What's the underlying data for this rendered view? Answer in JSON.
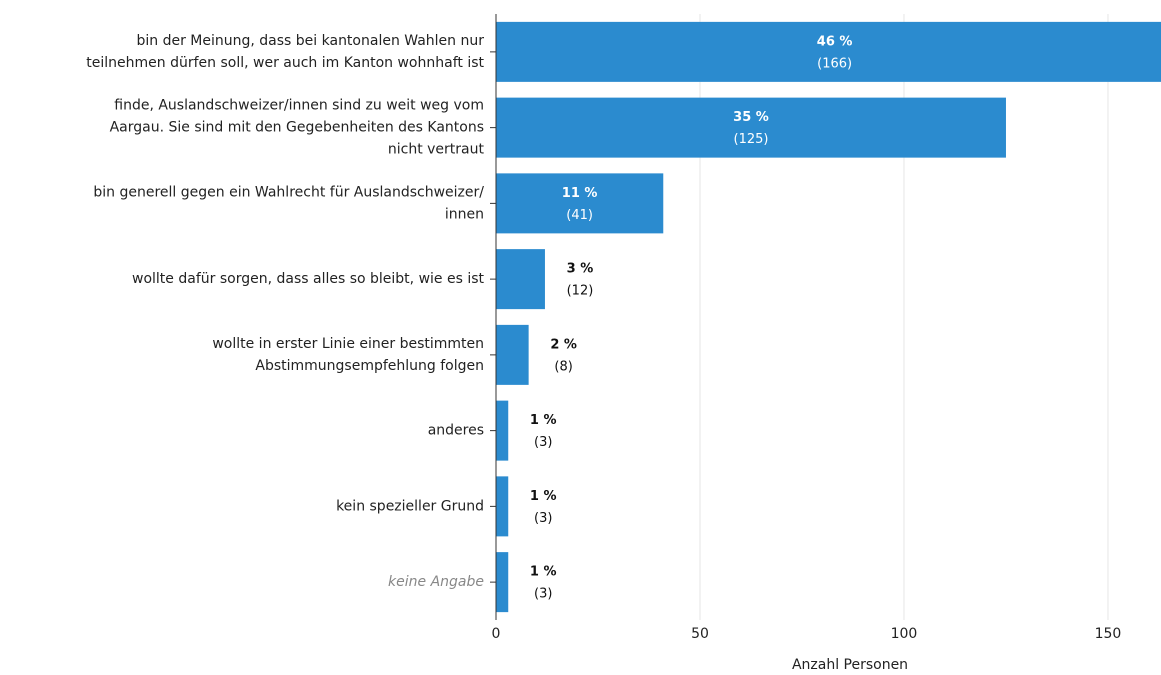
{
  "chart_data": {
    "type": "bar",
    "orientation": "horizontal",
    "categories": [
      [
        "bin der Meinung, dass bei kantonalen Wahlen nur",
        "teilnehmen dürfen soll, wer auch im Kanton wohnhaft ist"
      ],
      [
        "finde, Auslandschweizer/innen sind zu weit weg vom",
        "Aargau. Sie sind mit den Gegebenheiten des Kantons",
        "nicht vertraut"
      ],
      [
        "bin generell gegen ein Wahlrecht für Auslandschweizer/",
        "innen"
      ],
      [
        "wollte dafür sorgen, dass alles so bleibt, wie es ist"
      ],
      [
        "wollte in erster Linie einer bestimmten",
        "Abstimmungsempfehlung folgen"
      ],
      [
        "anderes"
      ],
      [
        "kein spezieller Grund"
      ],
      [
        "keine Angabe"
      ]
    ],
    "values": [
      166,
      125,
      41,
      12,
      8,
      3,
      3,
      3
    ],
    "value_labels": [
      "(166)",
      "(125)",
      "(41)",
      "(12)",
      "(8)",
      "(3)",
      "(3)",
      "(3)"
    ],
    "shares": [
      46,
      35,
      11,
      3,
      2,
      1,
      1,
      1
    ],
    "share_labels": [
      "46 %",
      "35 %",
      "11 %",
      "3 %",
      "2 %",
      "1 %",
      "1 %",
      "1 %"
    ],
    "color": "#2b8bcf",
    "xlim": [
      0,
      163
    ],
    "xticks": [
      0,
      50,
      100,
      150
    ],
    "grid": true,
    "x_label": "Anzahl Personen"
  }
}
